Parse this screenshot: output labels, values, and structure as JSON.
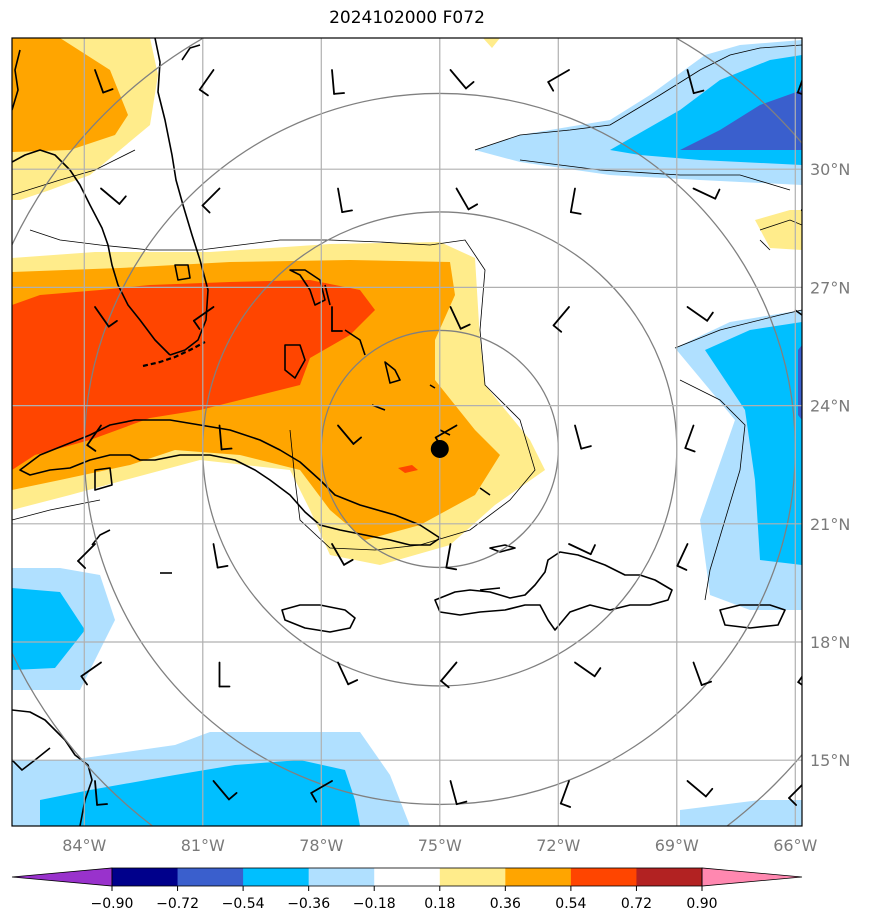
{
  "title": "2024102000 F072",
  "map": {
    "lon_range": [
      -85.83,
      -65.83
    ],
    "lat_range": [
      13.33,
      33.33
    ],
    "lon_ticks": [
      {
        "value": -84,
        "label": "84°W"
      },
      {
        "value": -81,
        "label": "81°W"
      },
      {
        "value": -78,
        "label": "78°W"
      },
      {
        "value": -75,
        "label": "75°W"
      },
      {
        "value": -72,
        "label": "72°W"
      },
      {
        "value": -69,
        "label": "69°W"
      },
      {
        "value": -66,
        "label": "66°W"
      }
    ],
    "lat_ticks": [
      {
        "value": 30,
        "label": "30°N"
      },
      {
        "value": 27,
        "label": "27°N"
      },
      {
        "value": 24,
        "label": "24°N"
      },
      {
        "value": 21,
        "label": "21°N"
      },
      {
        "value": 18,
        "label": "18°N"
      },
      {
        "value": 15,
        "label": "15°N"
      }
    ],
    "storm_center": {
      "lon": -75.0,
      "lat": 22.9
    },
    "range_rings_deg": [
      3,
      6,
      9,
      12
    ],
    "grid": true,
    "colors": {
      "coast": "#000000",
      "ring": "#808080",
      "grid": "#b0b0b0",
      "barb": "#000000"
    }
  },
  "colorbar": {
    "colors": [
      "#9932cc",
      "#00008b",
      "#3a5fcd",
      "#00bfff",
      "#b0e0ff",
      "#ffffff",
      "#ffec8b",
      "#ffa500",
      "#ff4500",
      "#b22222",
      "#ff88b0"
    ],
    "labels": [
      "−0.90",
      "−0.72",
      "−0.54",
      "−0.36",
      "−0.18",
      "0.18",
      "0.36",
      "0.54",
      "0.72",
      "0.90"
    ]
  }
}
